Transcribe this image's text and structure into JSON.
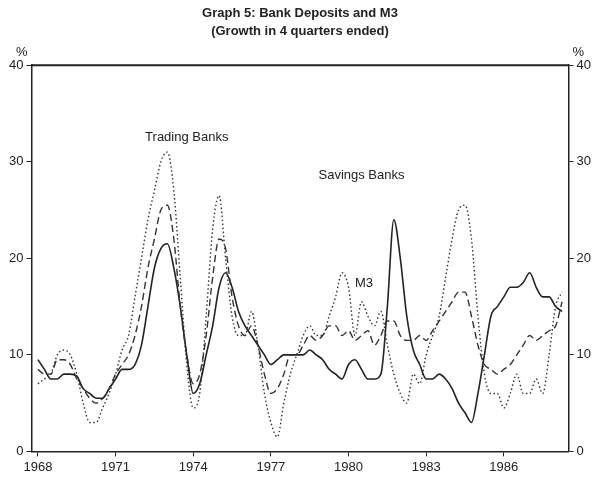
{
  "chart_data": {
    "type": "line",
    "title": "Graph 5: Bank Deposits and M3",
    "subtitle": "(Growth in 4 quarters ended)",
    "y_label": "%",
    "y2_label": "%",
    "x": [
      1968,
      1968.25,
      1968.5,
      1968.75,
      1969,
      1969.25,
      1969.5,
      1969.75,
      1970,
      1970.25,
      1970.5,
      1970.75,
      1971,
      1971.25,
      1971.5,
      1971.75,
      1972,
      1972.25,
      1972.5,
      1972.75,
      1973,
      1973.25,
      1973.5,
      1973.75,
      1974,
      1974.25,
      1974.5,
      1974.75,
      1975,
      1975.25,
      1975.5,
      1975.75,
      1976,
      1976.25,
      1976.5,
      1976.75,
      1977,
      1977.25,
      1977.5,
      1977.75,
      1978,
      1978.25,
      1978.5,
      1978.75,
      1979,
      1979.25,
      1979.5,
      1979.75,
      1980,
      1980.25,
      1980.5,
      1980.75,
      1981,
      1981.25,
      1981.5,
      1981.75,
      1982,
      1982.25,
      1982.5,
      1982.75,
      1983,
      1983.25,
      1983.5,
      1983.75,
      1984,
      1984.25,
      1984.5,
      1984.75,
      1985,
      1985.25,
      1985.5,
      1985.75,
      1986,
      1986.25,
      1986.5,
      1986.75,
      1987,
      1987.25,
      1987.5,
      1987.75,
      1988,
      1988.25
    ],
    "series": [
      {
        "name": "Trading Banks",
        "color": "#333333",
        "line_style": "dotted",
        "values": [
          7,
          7.5,
          8,
          10,
          10.5,
          10,
          8,
          5,
          3,
          3,
          4.5,
          6,
          8,
          10.5,
          12,
          16,
          20,
          24,
          27,
          30,
          31,
          27,
          18,
          9,
          4.5,
          6,
          14,
          23,
          26.5,
          20,
          14,
          12,
          12,
          14.5,
          11,
          6,
          3,
          1.5,
          5,
          8,
          10,
          12,
          13,
          12,
          12,
          14,
          16,
          18.5,
          17,
          12,
          15.5,
          14,
          13,
          14.5,
          11,
          8,
          6,
          5,
          8,
          7,
          10,
          12,
          14,
          18,
          22,
          25,
          25.5,
          22,
          14,
          8,
          6,
          6,
          4.5,
          6,
          8,
          6,
          6,
          7.5,
          6,
          10,
          15,
          16.5
        ]
      },
      {
        "name": "M3",
        "color": "#333333",
        "line_style": "dashed",
        "values": [
          8.5,
          8,
          8,
          9.5,
          9.5,
          9,
          7.5,
          6.5,
          5.5,
          5,
          5.5,
          6.5,
          8,
          9,
          10,
          12,
          15,
          19,
          22,
          25,
          25.5,
          22,
          15,
          10,
          7,
          8,
          12,
          18,
          22,
          21,
          16,
          13,
          12,
          13,
          11,
          8,
          6,
          6.5,
          8,
          10,
          10,
          11,
          12,
          11.5,
          12,
          13,
          13,
          12,
          12.5,
          11.5,
          12,
          12.5,
          11,
          12,
          13.5,
          13.5,
          12,
          11.5,
          11.5,
          12,
          11.5,
          12.5,
          13.5,
          14.5,
          15.5,
          16.5,
          16.5,
          14,
          11,
          9,
          8.5,
          8,
          8.5,
          9,
          10,
          11,
          12,
          11.5,
          12,
          12.5,
          13,
          15.5
        ]
      },
      {
        "name": "Savings Banks",
        "color": "#222222",
        "line_style": "solid",
        "values": [
          9.5,
          8.5,
          7.5,
          7.5,
          8,
          8,
          7.8,
          6.5,
          6,
          5.5,
          5.5,
          6.5,
          7.5,
          8.5,
          8.5,
          9,
          11,
          15,
          19,
          21,
          21.5,
          19,
          15,
          10,
          6,
          7,
          10,
          13,
          17,
          18.5,
          17,
          14.5,
          13,
          12,
          11,
          10,
          9,
          9.5,
          10,
          10,
          10,
          10,
          10.5,
          10,
          9.5,
          8.5,
          8,
          7.5,
          9,
          9.5,
          8.5,
          7.5,
          7.5,
          8,
          15,
          24,
          20,
          14,
          10.5,
          9,
          7.5,
          7.5,
          8,
          7.5,
          6.5,
          5,
          4,
          3,
          6,
          10,
          14,
          15,
          16,
          17,
          17,
          17.5,
          18.5,
          17,
          16,
          16,
          15,
          14.5
        ]
      }
    ],
    "annotations": [
      {
        "text": "Trading Banks",
        "x": 1973.75,
        "y": 32.5
      },
      {
        "text": "Savings Banks",
        "x": 1980.5,
        "y": 28.6
      },
      {
        "text": "M3",
        "x": 1980.6,
        "y": 17.4
      }
    ],
    "xlim": [
      1967.75,
      1988.5
    ],
    "xticks": [
      1968,
      1971,
      1974,
      1977,
      1980,
      1983,
      1986
    ],
    "ylim": [
      0,
      40
    ],
    "yticks": [
      0,
      10,
      20,
      30,
      40
    ],
    "y2lim": [
      0,
      40
    ],
    "y2ticks": [
      0,
      10,
      20,
      30,
      40
    ],
    "grid": false
  }
}
